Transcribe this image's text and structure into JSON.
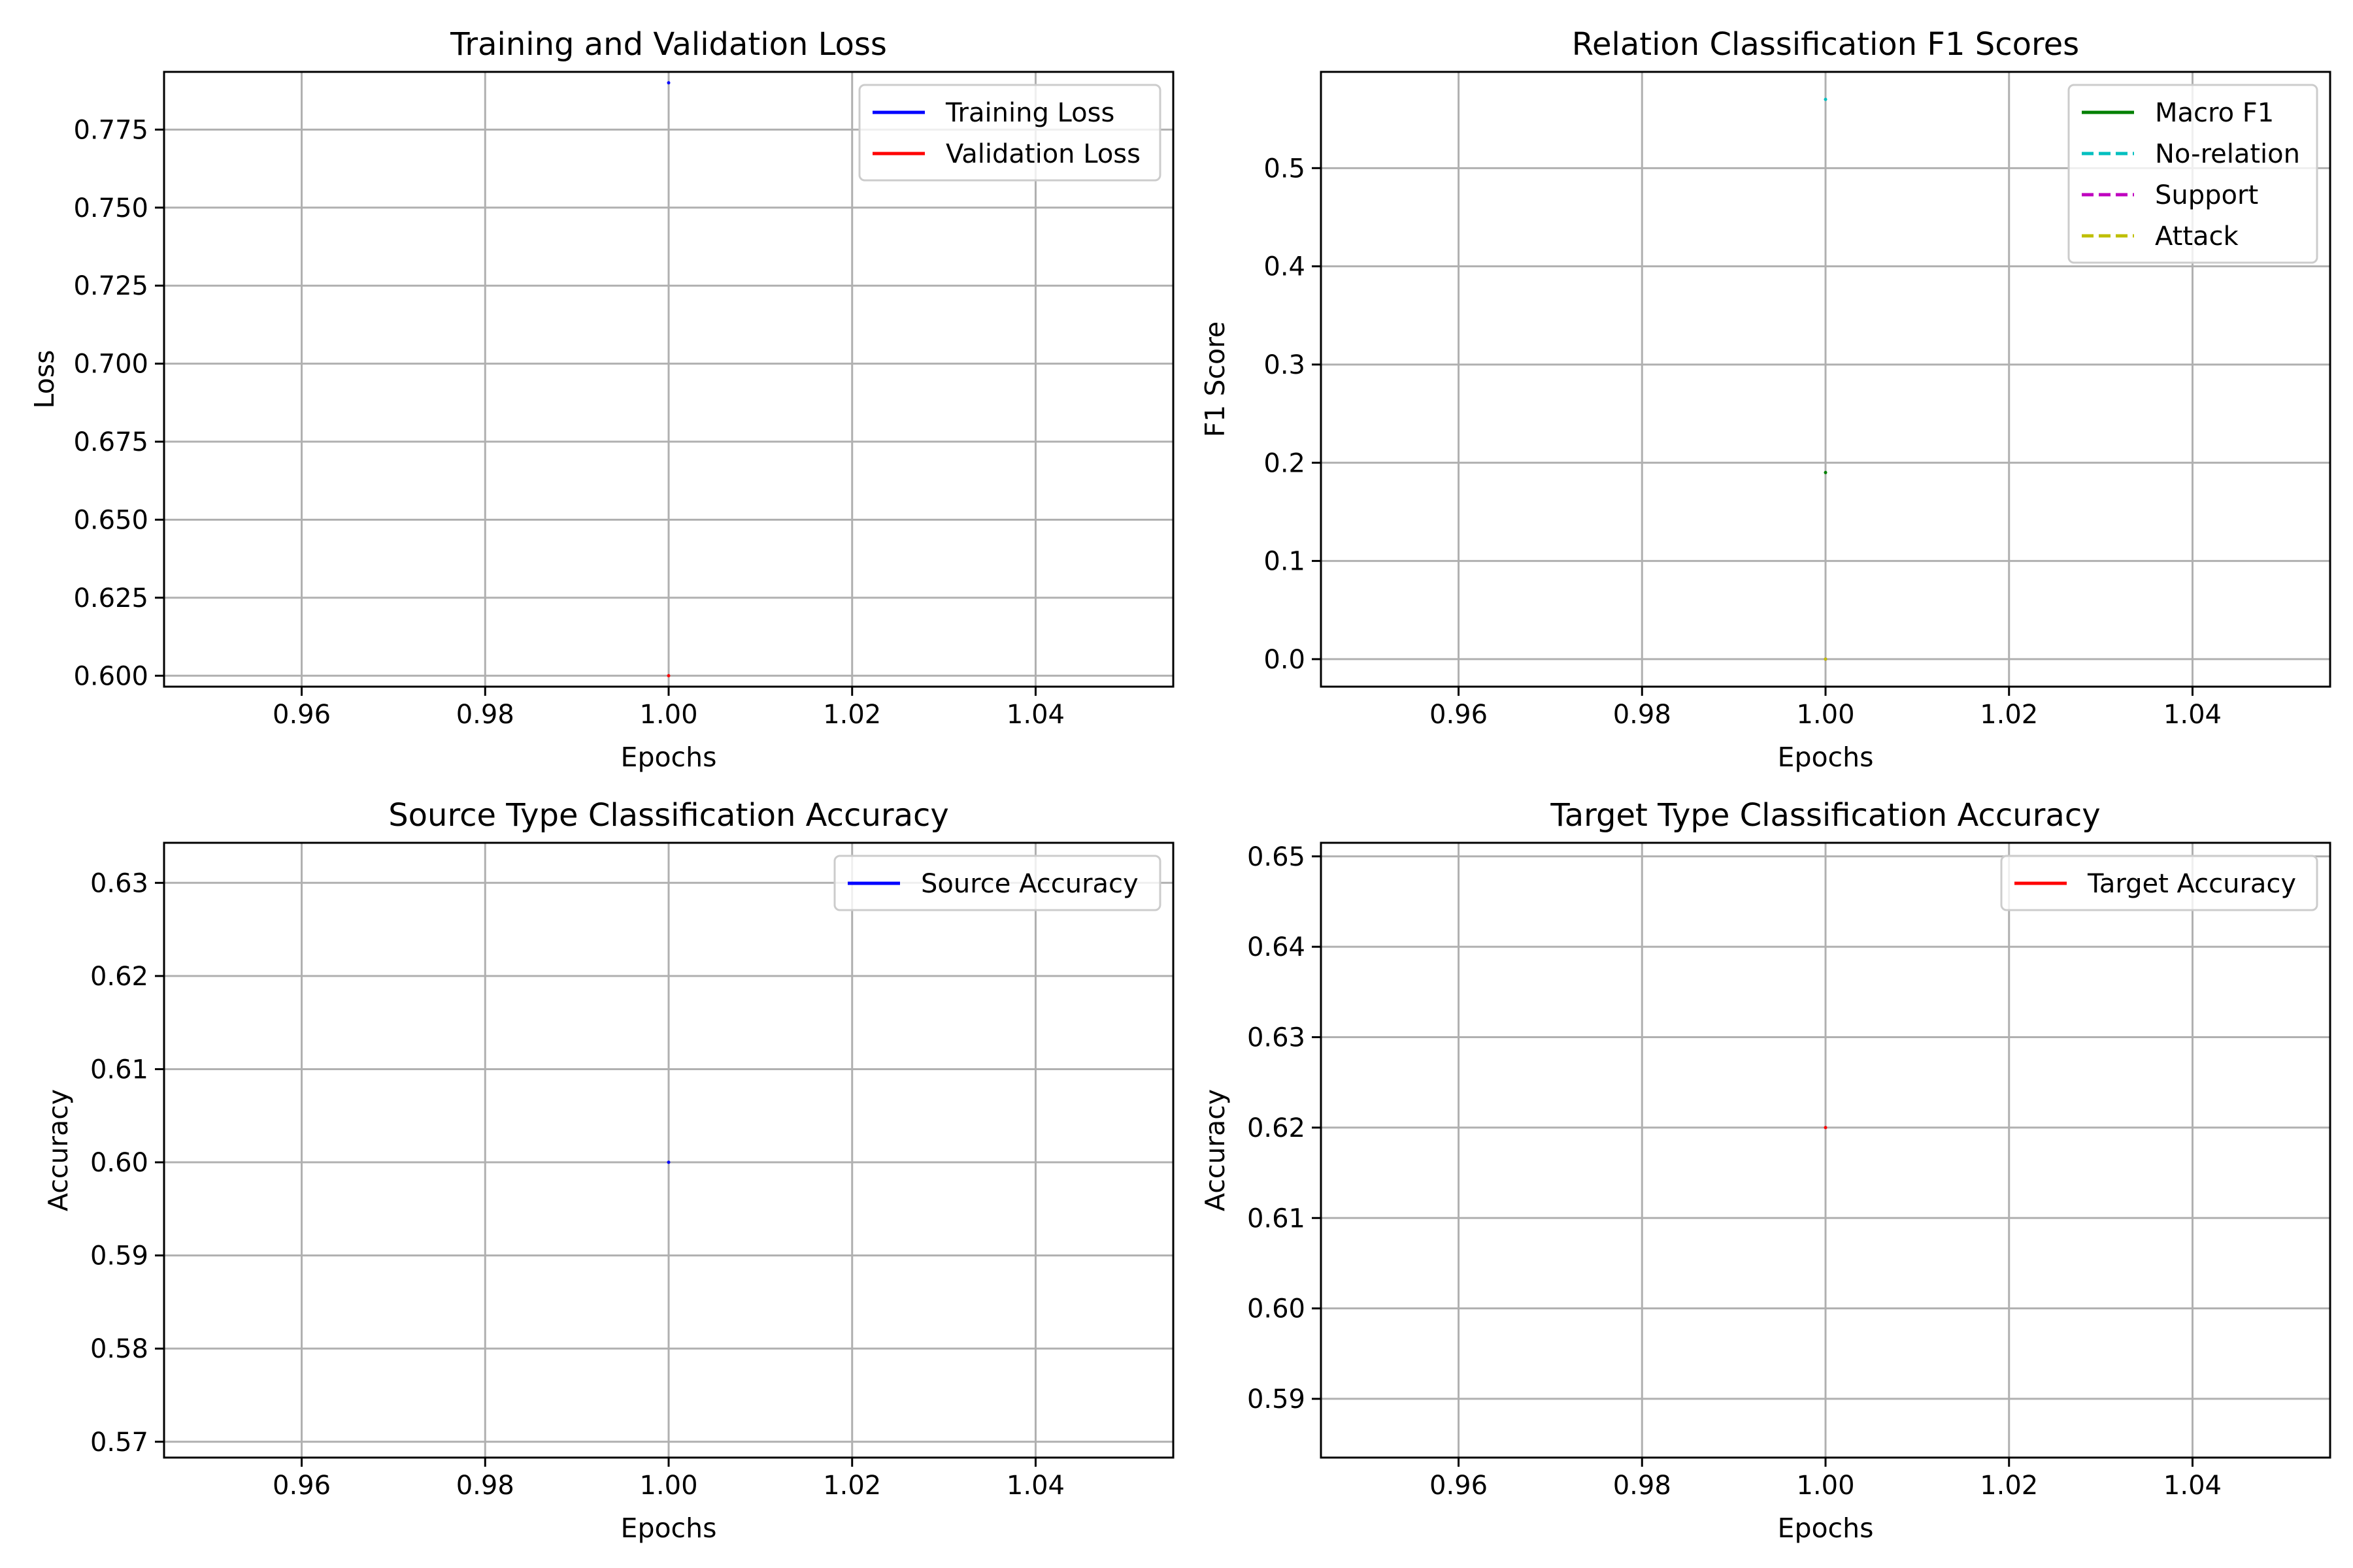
{
  "chart_data": [
    {
      "type": "line",
      "title": "Training and Validation Loss",
      "xlabel": "Epochs",
      "ylabel": "Loss",
      "xlim": [
        0.945,
        1.055
      ],
      "ylim": [
        0.5965,
        0.7935
      ],
      "xticks": [
        0.96,
        0.98,
        1.0,
        1.02,
        1.04
      ],
      "xtick_labels": [
        "0.96",
        "0.98",
        "1.00",
        "1.02",
        "1.04"
      ],
      "yticks": [
        0.6,
        0.625,
        0.65,
        0.675,
        0.7,
        0.725,
        0.75,
        0.775
      ],
      "ytick_labels": [
        "0.600",
        "0.625",
        "0.650",
        "0.675",
        "0.700",
        "0.725",
        "0.750",
        "0.775"
      ],
      "grid": true,
      "legend": "top-right",
      "series": [
        {
          "name": "Training Loss",
          "color": "#0000ff",
          "dash": "solid",
          "x": [
            1
          ],
          "values": [
            0.79
          ]
        },
        {
          "name": "Validation Loss",
          "color": "#ff0000",
          "dash": "solid",
          "x": [
            1
          ],
          "values": [
            0.6
          ]
        }
      ]
    },
    {
      "type": "line",
      "title": "Relation Classification F1 Scores",
      "xlabel": "Epochs",
      "ylabel": "F1 Score",
      "xlim": [
        0.945,
        1.055
      ],
      "ylim": [
        -0.028,
        0.598
      ],
      "xticks": [
        0.96,
        0.98,
        1.0,
        1.02,
        1.04
      ],
      "xtick_labels": [
        "0.96",
        "0.98",
        "1.00",
        "1.02",
        "1.04"
      ],
      "yticks": [
        0.0,
        0.1,
        0.2,
        0.3,
        0.4,
        0.5
      ],
      "ytick_labels": [
        "0.0",
        "0.1",
        "0.2",
        "0.3",
        "0.4",
        "0.5"
      ],
      "grid": true,
      "legend": "top-right",
      "series": [
        {
          "name": "Macro F1",
          "color": "#008000",
          "dash": "solid",
          "x": [
            1
          ],
          "values": [
            0.19
          ]
        },
        {
          "name": "No-relation",
          "color": "#00bfbf",
          "dash": "dashed",
          "x": [
            1
          ],
          "values": [
            0.57
          ]
        },
        {
          "name": "Support",
          "color": "#bf00bf",
          "dash": "dashed",
          "x": [
            1
          ],
          "values": [
            0.0
          ]
        },
        {
          "name": "Attack",
          "color": "#bfbf00",
          "dash": "dashed",
          "x": [
            1
          ],
          "values": [
            0.0
          ]
        }
      ]
    },
    {
      "type": "line",
      "title": "Source Type Classification Accuracy",
      "xlabel": "Epochs",
      "ylabel": "Accuracy",
      "xlim": [
        0.945,
        1.055
      ],
      "ylim": [
        0.5683,
        0.6343
      ],
      "xticks": [
        0.96,
        0.98,
        1.0,
        1.02,
        1.04
      ],
      "xtick_labels": [
        "0.96",
        "0.98",
        "1.00",
        "1.02",
        "1.04"
      ],
      "yticks": [
        0.57,
        0.58,
        0.59,
        0.6,
        0.61,
        0.62,
        0.63
      ],
      "ytick_labels": [
        "0.57",
        "0.58",
        "0.59",
        "0.60",
        "0.61",
        "0.62",
        "0.63"
      ],
      "grid": true,
      "legend": "top-right",
      "series": [
        {
          "name": "Source Accuracy",
          "color": "#0000ff",
          "dash": "solid",
          "x": [
            1
          ],
          "values": [
            0.6
          ]
        }
      ]
    },
    {
      "type": "line",
      "title": "Target Type Classification Accuracy",
      "xlabel": "Epochs",
      "ylabel": "Accuracy",
      "xlim": [
        0.945,
        1.055
      ],
      "ylim": [
        0.5835,
        0.6515
      ],
      "xticks": [
        0.96,
        0.98,
        1.0,
        1.02,
        1.04
      ],
      "xtick_labels": [
        "0.96",
        "0.98",
        "1.00",
        "1.02",
        "1.04"
      ],
      "yticks": [
        0.59,
        0.6,
        0.61,
        0.62,
        0.63,
        0.64,
        0.65
      ],
      "ytick_labels": [
        "0.59",
        "0.60",
        "0.61",
        "0.62",
        "0.63",
        "0.64",
        "0.65"
      ],
      "grid": true,
      "legend": "top-right",
      "series": [
        {
          "name": "Target Accuracy",
          "color": "#ff0000",
          "dash": "solid",
          "x": [
            1
          ],
          "values": [
            0.62
          ]
        }
      ]
    }
  ]
}
